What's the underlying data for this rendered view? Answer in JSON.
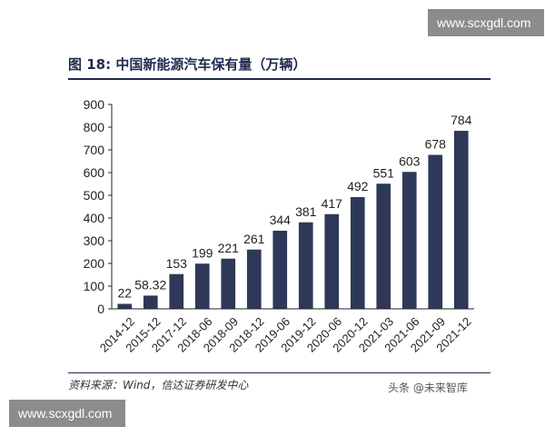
{
  "figure_title": "图 18:  中国新能源汽车保有量（万辆）",
  "source": "资料来源：Wind，信达证券研发中心",
  "credit": "头条 @未来智库",
  "watermarks": [
    "www.scxgdl.com",
    "www.scxgdl.com"
  ],
  "chart_data": {
    "type": "bar",
    "title": "",
    "xlabel": "",
    "ylabel": "",
    "ylim": [
      0,
      900
    ],
    "yticks": [
      0,
      100,
      200,
      300,
      400,
      500,
      600,
      700,
      800,
      900
    ],
    "categories": [
      "2014-12",
      "2015-12",
      "2017-12",
      "2018-06",
      "2018-09",
      "2018-12",
      "2019-06",
      "2019-12",
      "2020-06",
      "2020-12",
      "2021-03",
      "2021-06",
      "2021-09",
      "2021-12"
    ],
    "values": [
      22,
      58.32,
      153,
      199,
      221,
      261,
      344,
      381,
      417,
      492,
      551,
      603,
      678,
      784
    ],
    "data_labels": [
      "22",
      "58.32",
      "153",
      "199",
      "221",
      "261",
      "344",
      "381",
      "417",
      "492",
      "551",
      "603",
      "678",
      "784"
    ],
    "bar_color": "#2e3858",
    "grid": false,
    "legend": "none"
  }
}
